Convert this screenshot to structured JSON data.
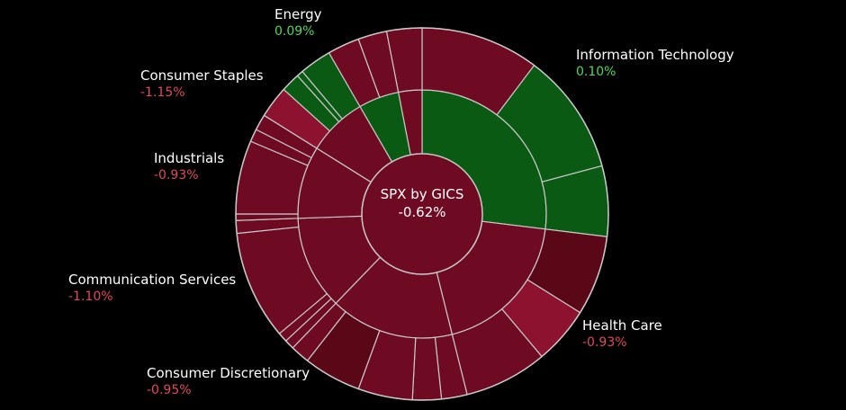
{
  "chart_data": {
    "type": "sunburst",
    "title": "SPX by GICS",
    "value": "-0.62%",
    "colors": {
      "positive": "#0a5a14",
      "negative": "#6e0a22",
      "negative_bright": "#8c1230",
      "negative_dark": "#5a0818",
      "positive_text": "#4ed85a",
      "negative_text": "#e04a5a",
      "separator": "#c8c8c8"
    },
    "sectors": [
      {
        "name": "Information Technology",
        "change": "0.10%",
        "sign": "positive"
      },
      {
        "name": "Health Care",
        "change": "-0.93%",
        "sign": "negative"
      },
      {
        "name": "Consumer Discretionary",
        "change": "-0.95%",
        "sign": "negative"
      },
      {
        "name": "Communication Services",
        "change": "-1.10%",
        "sign": "negative"
      },
      {
        "name": "Industrials",
        "change": "-0.93%",
        "sign": "negative"
      },
      {
        "name": "Consumer Staples",
        "change": "-1.15%",
        "sign": "negative"
      },
      {
        "name": "Energy",
        "change": "0.09%",
        "sign": "positive"
      }
    ]
  }
}
